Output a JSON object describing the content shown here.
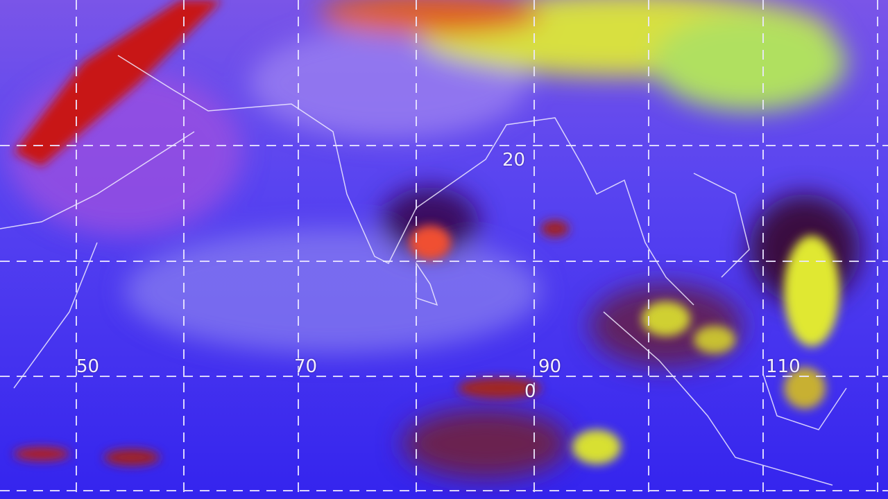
{
  "map": {
    "type": "satellite-infrared-composite",
    "grid_labels": {
      "lat_20": "20",
      "lat_0": "0",
      "lon_50": "50",
      "lon_70": "70",
      "lon_90": "90",
      "lon_110": "110"
    },
    "colors": {
      "ocean": "#3a2ef0",
      "land_haze": "#8a6af0",
      "cloud_red": "#c01818",
      "cloud_yellow": "#e8f030",
      "grid": "#e8e8ff"
    }
  }
}
